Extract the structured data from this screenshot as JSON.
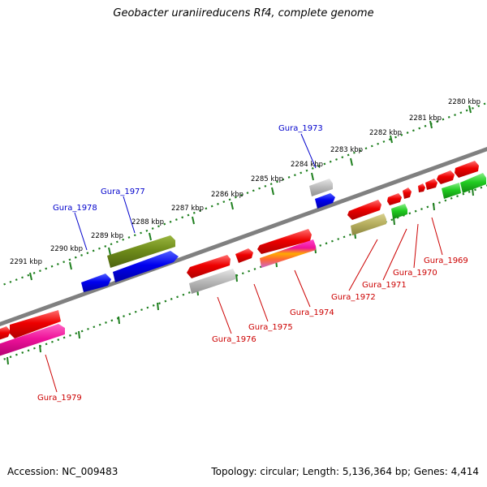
{
  "title": "Geobacter uraniireducens Rf4, complete genome",
  "footer": {
    "accession": "Accession: NC_009483",
    "summary": "Topology: circular; Length: 5,136,364 bp; Genes: 4,414"
  },
  "scale_ticks": [
    "2280 kbp",
    "2281 kbp",
    "2282 kbp",
    "2283 kbp",
    "2284 kbp",
    "2285 kbp",
    "2286 kbp",
    "2287 kbp",
    "2288 kbp",
    "2289 kbp",
    "2290 kbp",
    "2291 kbp"
  ],
  "gene_labels": [
    {
      "name": "Gura_1973",
      "strand": "plus",
      "color": "#0000cc"
    },
    {
      "name": "Gura_1977",
      "strand": "plus",
      "color": "#0000cc"
    },
    {
      "name": "Gura_1978",
      "strand": "plus",
      "color": "#0000cc"
    },
    {
      "name": "Gura_1969",
      "strand": "minus",
      "color": "#cc0000"
    },
    {
      "name": "Gura_1970",
      "strand": "minus",
      "color": "#cc0000"
    },
    {
      "name": "Gura_1971",
      "strand": "minus",
      "color": "#cc0000"
    },
    {
      "name": "Gura_1972",
      "strand": "minus",
      "color": "#cc0000"
    },
    {
      "name": "Gura_1974",
      "strand": "minus",
      "color": "#cc0000"
    },
    {
      "name": "Gura_1975",
      "strand": "minus",
      "color": "#cc0000"
    },
    {
      "name": "Gura_1976",
      "strand": "minus",
      "color": "#cc0000"
    },
    {
      "name": "Gura_1979",
      "strand": "minus",
      "color": "#cc0000"
    }
  ],
  "feature_colors": {
    "red": "#ee0000",
    "blue": "#0000ee",
    "olive": "#6f8c1a",
    "gray": "#b8b8b8",
    "khaki": "#b8b060",
    "green": "#22cc22",
    "magenta": "#ee1199",
    "backbone": "#808080",
    "scale": "#1f7f1f"
  }
}
